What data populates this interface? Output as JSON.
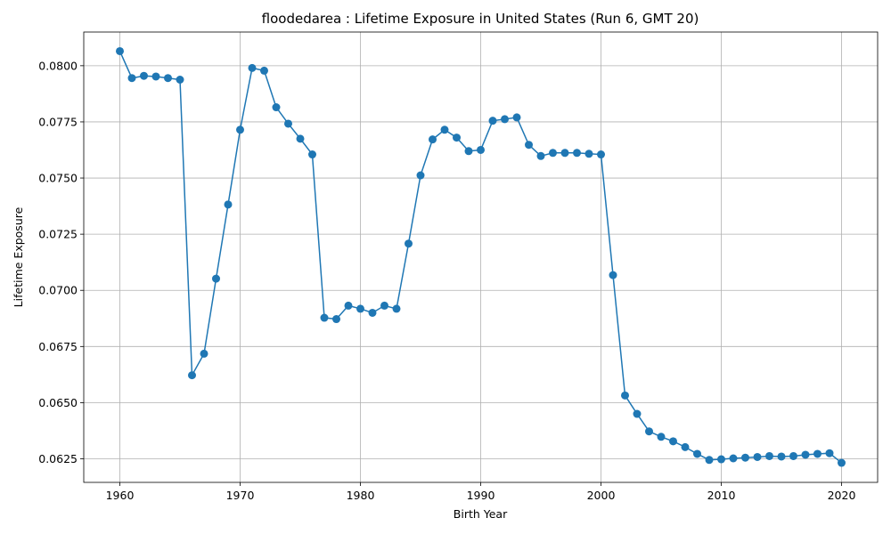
{
  "chart_data": {
    "type": "line",
    "title": "floodedarea : Lifetime Exposure in United States (Run 6, GMT 20)",
    "xlabel": "Birth Year",
    "ylabel": "Lifetime Exposure",
    "xlim": [
      1957,
      2023
    ],
    "ylim": [
      0.06145,
      0.0815
    ],
    "xticks": [
      1960,
      1970,
      1980,
      1990,
      2000,
      2010,
      2020
    ],
    "yticks": [
      0.0625,
      0.065,
      0.0675,
      0.07,
      0.0725,
      0.075,
      0.0775,
      0.08
    ],
    "ytick_labels": [
      "0.0625",
      "0.0650",
      "0.0675",
      "0.0700",
      "0.0725",
      "0.0750",
      "0.0775",
      "0.0800"
    ],
    "grid": true,
    "color": "#1f77b4",
    "marker": "circle",
    "series": [
      {
        "x": [
          1960,
          1961,
          1962,
          1963,
          1964,
          1965,
          1966,
          1967,
          1968,
          1969,
          1970,
          1971,
          1972,
          1973,
          1974,
          1975,
          1976,
          1977,
          1978,
          1979,
          1980,
          1981,
          1982,
          1983,
          1984,
          1985,
          1986,
          1987,
          1988,
          1989,
          1990,
          1991,
          1992,
          1993,
          1994,
          1995,
          1996,
          1997,
          1998,
          1999,
          2000,
          2001,
          2002,
          2003,
          2004,
          2005,
          2006,
          2007,
          2008,
          2009,
          2010,
          2011,
          2012,
          2013,
          2014,
          2015,
          2016,
          2017,
          2018,
          2019,
          2020
        ],
        "values": [
          0.08065,
          0.07945,
          0.07955,
          0.07952,
          0.07945,
          0.07938,
          0.06622,
          0.06718,
          0.07052,
          0.07382,
          0.07715,
          0.0799,
          0.07978,
          0.07815,
          0.07742,
          0.07675,
          0.07605,
          0.06878,
          0.06872,
          0.06932,
          0.06918,
          0.069,
          0.06932,
          0.06918,
          0.07208,
          0.07512,
          0.07672,
          0.07715,
          0.0768,
          0.0762,
          0.07625,
          0.07755,
          0.07762,
          0.0777,
          0.07648,
          0.07598,
          0.07612,
          0.07612,
          0.07612,
          0.07608,
          0.07605,
          0.07068,
          0.06532,
          0.0645,
          0.06372,
          0.06348,
          0.06328,
          0.06302,
          0.06272,
          0.06245,
          0.06248,
          0.06252,
          0.06255,
          0.06258,
          0.06262,
          0.0626,
          0.06262,
          0.06268,
          0.06272,
          0.06275,
          0.06232
        ]
      }
    ]
  }
}
